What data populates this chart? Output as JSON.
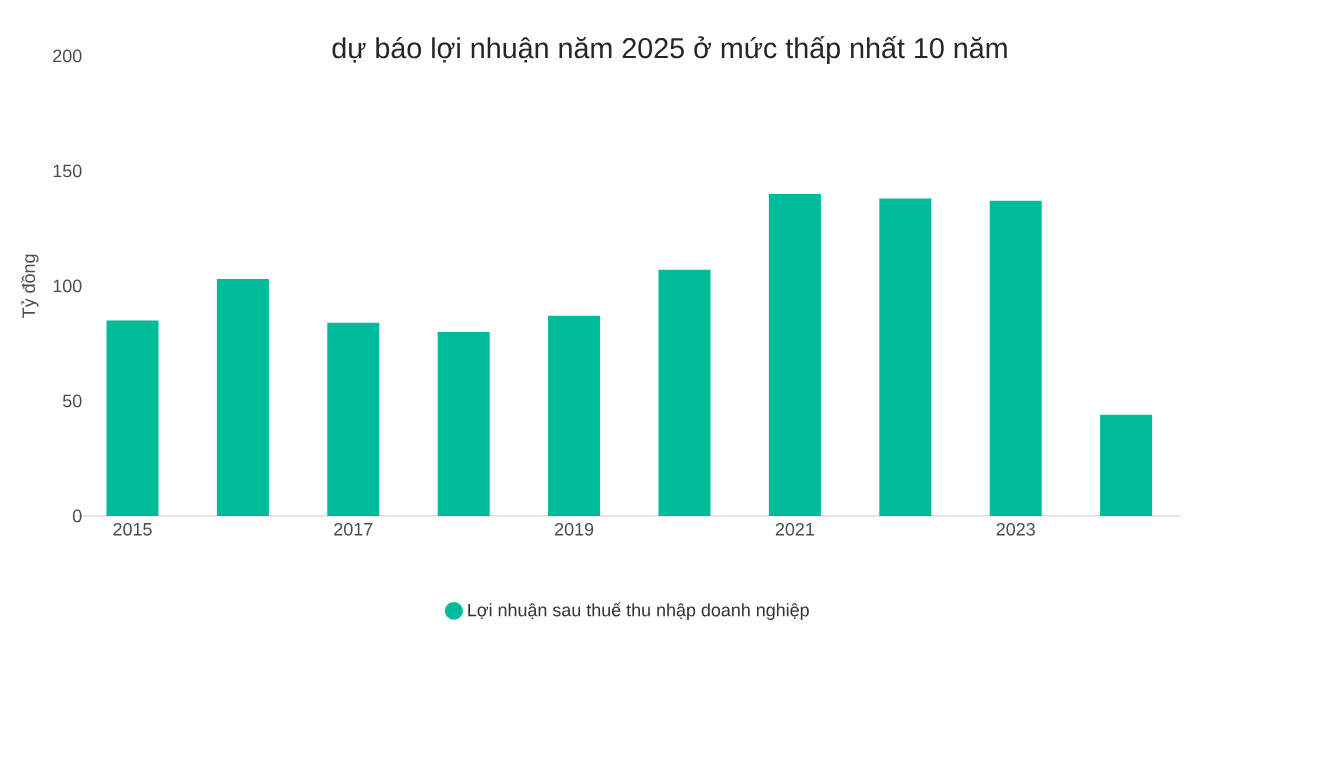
{
  "chart_data": {
    "type": "bar",
    "title": "dự báo lợi nhuận năm 2025 ở mức thấp nhất 10 năm",
    "ylabel": "Tỷ đồng",
    "categories": [
      "2015",
      null,
      "2017",
      null,
      "2019",
      null,
      "2021",
      null,
      "2023",
      null
    ],
    "series": [
      {
        "name": "Lợi nhuận sau thuế thu nhập doanh nghiệp",
        "color": "#00bb9a",
        "values": [
          85,
          103,
          84,
          80,
          87,
          107,
          140,
          138,
          137,
          44
        ]
      }
    ],
    "ylim": [
      0,
      200
    ],
    "yticks": [
      0,
      50,
      100,
      150,
      200
    ],
    "grid": false,
    "legend": "bottom",
    "marker": "circle"
  }
}
